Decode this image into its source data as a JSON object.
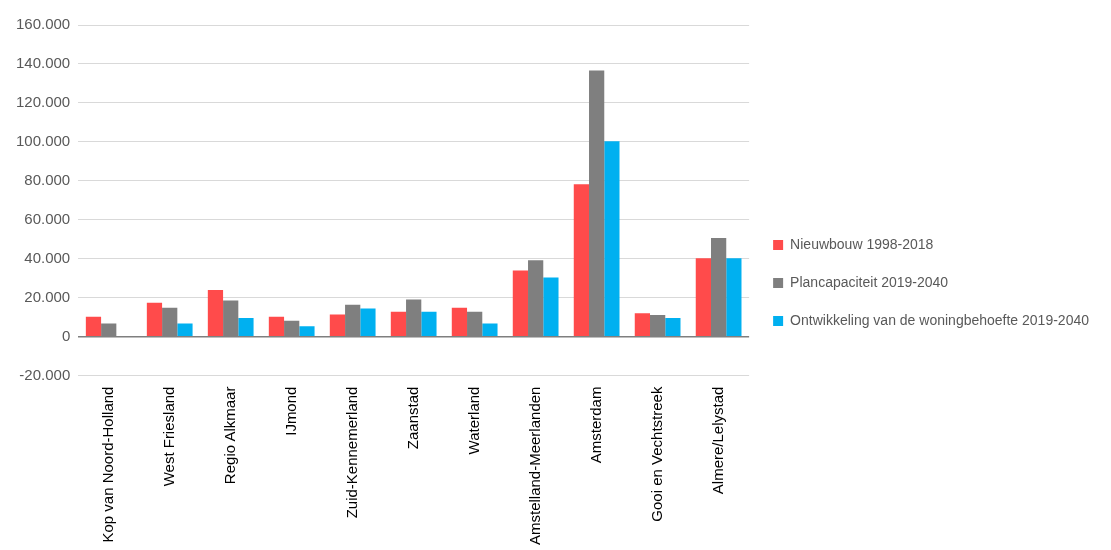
{
  "chart_data": {
    "type": "bar",
    "categories": [
      "Kop van Noord-Holland",
      "West Friesland",
      "Regio Alkmaar",
      "IJmond",
      "Zuid-Kennemerland",
      "Zaanstad",
      "Waterland",
      "Amstelland-Meerlanden",
      "Amsterdam",
      "Gooi en Vechtstreek",
      "Almere/Lelystad"
    ],
    "series": [
      {
        "name": "Nieuwbouw 1998-2018",
        "color": "#ff4b4b",
        "values": [
          10200,
          17400,
          23900,
          10200,
          11300,
          12800,
          14800,
          33900,
          78300,
          12000,
          40200
        ]
      },
      {
        "name": "Plancapaciteit 2019-2040",
        "color": "#7f7f7f",
        "values": [
          6800,
          14800,
          18500,
          8100,
          16400,
          19100,
          12800,
          39200,
          136700,
          11100,
          50700
        ]
      },
      {
        "name": "Ontwikkeling van de woningbehoefte 2019-2040",
        "color": "#00b0f0",
        "values": [
          null,
          6800,
          9600,
          5300,
          14400,
          12800,
          6800,
          30300,
          100300,
          9600,
          40200
        ]
      }
    ],
    "ylim": [
      -20000,
      160000
    ],
    "yticks": [
      {
        "value": -20000,
        "label": "-20.000"
      },
      {
        "value": 0,
        "label": "0"
      },
      {
        "value": 20000,
        "label": "20.000"
      },
      {
        "value": 40000,
        "label": "40.000"
      },
      {
        "value": 60000,
        "label": "60.000"
      },
      {
        "value": 80000,
        "label": "80.000"
      },
      {
        "value": 100000,
        "label": "100.000"
      },
      {
        "value": 120000,
        "label": "120.000"
      },
      {
        "value": 140000,
        "label": "140.000"
      },
      {
        "value": 160000,
        "label": "160.000"
      }
    ],
    "grid": "y",
    "legend": "right"
  }
}
